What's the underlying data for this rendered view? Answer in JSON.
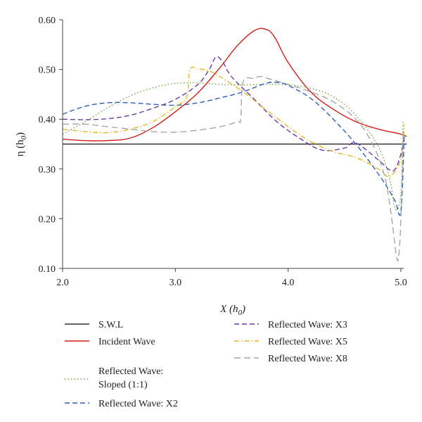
{
  "chart_data": {
    "type": "line",
    "xlabel": "X (h0)",
    "xlabel_main": "X (h",
    "xlabel_sub": "0",
    "xlabel_close": ")",
    "ylabel_main": "η (h",
    "ylabel_sub": "0",
    "ylabel_close": ")",
    "xlim": [
      2.0,
      5.05
    ],
    "ylim": [
      0.1,
      0.6
    ],
    "xticks": [
      2.0,
      3.0,
      4.0,
      5.0
    ],
    "xtick_labels": [
      "2.0",
      "3.0",
      "4.0",
      "5.0"
    ],
    "yticks": [
      0.1,
      0.2,
      0.3,
      0.4,
      0.5,
      0.6
    ],
    "ytick_labels": [
      "0.10",
      "0.20",
      "0.30",
      "0.40",
      "0.50",
      "0.60"
    ],
    "grid": false,
    "legend_position": "bottom",
    "series": [
      {
        "name": "S.W.L",
        "color": "#333333",
        "dash": "solid",
        "x": [
          2.0,
          5.05
        ],
        "y": [
          0.35,
          0.35
        ]
      },
      {
        "name": "Incident Wave",
        "color": "#d21f1a",
        "dash": "solid",
        "x": [
          2.0,
          2.2,
          2.4,
          2.6,
          2.8,
          3.0,
          3.2,
          3.4,
          3.55,
          3.7,
          3.8,
          3.88,
          4.0,
          4.2,
          4.4,
          4.6,
          4.8,
          5.0,
          5.05
        ],
        "y": [
          0.36,
          0.357,
          0.357,
          0.362,
          0.383,
          0.415,
          0.453,
          0.505,
          0.548,
          0.578,
          0.581,
          0.565,
          0.514,
          0.455,
          0.42,
          0.395,
          0.38,
          0.37,
          0.365
        ]
      },
      {
        "name": "Reflected Wave: Sloped (1:1)",
        "color": "#6aaa3c",
        "dash": "dot",
        "x": [
          2.0,
          2.2,
          2.4,
          2.6,
          2.8,
          3.0,
          3.2,
          3.4,
          3.6,
          3.8,
          4.0,
          4.2,
          4.4,
          4.6,
          4.8,
          4.9,
          4.95,
          5.0,
          5.02
        ],
        "y": [
          0.37,
          0.395,
          0.423,
          0.447,
          0.463,
          0.472,
          0.473,
          0.47,
          0.469,
          0.47,
          0.469,
          0.462,
          0.445,
          0.408,
          0.345,
          0.28,
          0.22,
          0.25,
          0.395
        ]
      },
      {
        "name": "Reflected Wave: X2",
        "color": "#2f5fb3",
        "dash": "dash",
        "x": [
          2.0,
          2.2,
          2.4,
          2.6,
          2.8,
          3.0,
          3.2,
          3.4,
          3.6,
          3.8,
          3.9,
          4.0,
          4.2,
          4.4,
          4.6,
          4.8,
          4.9,
          4.95,
          5.0,
          5.03
        ],
        "y": [
          0.41,
          0.426,
          0.433,
          0.433,
          0.43,
          0.428,
          0.433,
          0.443,
          0.455,
          0.472,
          0.474,
          0.468,
          0.442,
          0.4,
          0.35,
          0.29,
          0.255,
          0.235,
          0.215,
          0.37
        ]
      },
      {
        "name": "Reflected Wave: X3",
        "color": "#6a3aa8",
        "dash": "dash",
        "x": [
          2.0,
          2.2,
          2.4,
          2.6,
          2.8,
          3.0,
          3.2,
          3.3,
          3.36,
          3.42,
          3.5,
          3.7,
          3.9,
          4.1,
          4.3,
          4.5,
          4.6,
          4.8,
          4.9,
          4.95,
          5.0,
          5.03
        ],
        "y": [
          0.4,
          0.399,
          0.401,
          0.408,
          0.422,
          0.44,
          0.47,
          0.5,
          0.525,
          0.515,
          0.485,
          0.44,
          0.395,
          0.362,
          0.338,
          0.342,
          0.352,
          0.318,
          0.298,
          0.3,
          0.33,
          0.365
        ]
      },
      {
        "name": "Reflected Wave: X5",
        "color": "#e6b620",
        "dash": "dashdot",
        "x": [
          2.0,
          2.2,
          2.4,
          2.6,
          2.8,
          3.0,
          3.1,
          3.13,
          3.2,
          3.3,
          3.4,
          3.6,
          3.8,
          4.0,
          4.2,
          4.4,
          4.6,
          4.8,
          4.9,
          5.0,
          5.03
        ],
        "y": [
          0.38,
          0.375,
          0.373,
          0.38,
          0.395,
          0.425,
          0.445,
          0.5,
          0.501,
          0.497,
          0.485,
          0.455,
          0.42,
          0.385,
          0.355,
          0.335,
          0.323,
          0.3,
          0.285,
          0.32,
          0.39
        ]
      },
      {
        "name": "Reflected Wave: X8",
        "color": "#a6a6a6",
        "dash": "longdash",
        "x": [
          2.0,
          2.2,
          2.4,
          2.6,
          2.8,
          3.0,
          3.2,
          3.4,
          3.55,
          3.58,
          3.6,
          3.7,
          3.75,
          3.85,
          4.0,
          4.2,
          4.4,
          4.6,
          4.75,
          4.85,
          4.9,
          4.93,
          4.96,
          4.98,
          5.0,
          5.02
        ],
        "y": [
          0.39,
          0.39,
          0.385,
          0.38,
          0.375,
          0.374,
          0.378,
          0.385,
          0.395,
          0.4,
          0.475,
          0.482,
          0.486,
          0.48,
          0.47,
          0.455,
          0.435,
          0.4,
          0.35,
          0.29,
          0.23,
          0.18,
          0.125,
          0.123,
          0.2,
          0.38
        ]
      }
    ]
  }
}
